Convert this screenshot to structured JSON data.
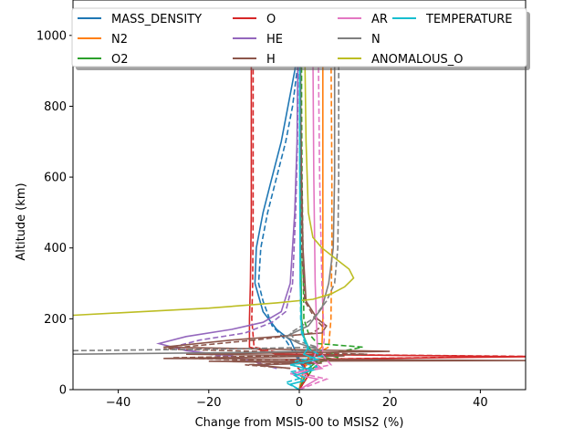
{
  "chart_data": {
    "type": "line",
    "xlabel": "Change from MSIS-00 to MSIS2 (%)",
    "ylabel": "Altitude (km)",
    "xlim": [
      -50,
      50
    ],
    "ylim": [
      0,
      1100
    ],
    "xticks": [
      -40,
      -20,
      0,
      20,
      40
    ],
    "yticks": [
      0,
      200,
      400,
      600,
      800,
      1000
    ],
    "grid": false,
    "legend_position": "top, 4 columns",
    "series": [
      {
        "name": "MASS_DENSITY",
        "color": "#1f77b4",
        "solid": [
          [
            0,
            0
          ],
          [
            1,
            60
          ],
          [
            -0.5,
            100
          ],
          [
            -2,
            140
          ],
          [
            -5,
            170
          ],
          [
            -8,
            220
          ],
          [
            -9.8,
            300
          ],
          [
            -9.5,
            400
          ],
          [
            -8,
            500
          ],
          [
            -6,
            600
          ],
          [
            -4,
            700
          ],
          [
            -2.5,
            800
          ],
          [
            -1,
            900
          ],
          [
            -0.3,
            960
          ]
        ],
        "dashed": [
          [
            0,
            0
          ],
          [
            1,
            60
          ],
          [
            -1,
            100
          ],
          [
            -3,
            140
          ],
          [
            -6,
            180
          ],
          [
            -8,
            250
          ],
          [
            -9,
            300
          ],
          [
            -8.5,
            400
          ],
          [
            -7,
            500
          ],
          [
            -5,
            600
          ],
          [
            -3,
            700
          ],
          [
            -1.5,
            800
          ],
          [
            -0.5,
            900
          ],
          [
            0,
            960
          ]
        ]
      },
      {
        "name": "N2",
        "color": "#ff7f0e",
        "solid": [
          [
            0,
            0
          ],
          [
            1,
            60
          ],
          [
            2,
            90
          ],
          [
            4,
            110
          ],
          [
            5,
            120
          ],
          [
            5.2,
            200
          ],
          [
            5.2,
            400
          ],
          [
            5.2,
            600
          ],
          [
            5.2,
            800
          ],
          [
            5.2,
            960
          ]
        ],
        "dashed": [
          [
            0,
            0
          ],
          [
            1,
            60
          ],
          [
            3,
            90
          ],
          [
            5,
            110
          ],
          [
            6.5,
            120
          ],
          [
            7,
            200
          ],
          [
            7.2,
            400
          ],
          [
            7.2,
            600
          ],
          [
            7.1,
            800
          ],
          [
            7,
            960
          ]
        ]
      },
      {
        "name": "O2",
        "color": "#2ca02c",
        "solid": [
          [
            0,
            0
          ],
          [
            2,
            60
          ],
          [
            4,
            80
          ],
          [
            8,
            85
          ],
          [
            4,
            95
          ],
          [
            2,
            120
          ],
          [
            1,
            150
          ],
          [
            0.5,
            200
          ],
          [
            0.3,
            400
          ],
          [
            0.3,
            600
          ],
          [
            0.3,
            800
          ],
          [
            0.3,
            960
          ]
        ],
        "dashed": [
          [
            0,
            0
          ],
          [
            3,
            60
          ],
          [
            5,
            80
          ],
          [
            10,
            85
          ],
          [
            6,
            100
          ],
          [
            14,
            120
          ],
          [
            4,
            130
          ],
          [
            2,
            160
          ],
          [
            1,
            200
          ],
          [
            0.8,
            400
          ],
          [
            0.6,
            600
          ],
          [
            0.5,
            800
          ],
          [
            0.5,
            960
          ]
        ]
      },
      {
        "name": "O",
        "color": "#d62728",
        "solid": [
          [
            0,
            0
          ],
          [
            2,
            40
          ],
          [
            1,
            70
          ],
          [
            -2,
            85
          ],
          [
            50,
            93
          ],
          [
            -5,
            100
          ],
          [
            -11,
            120
          ],
          [
            -11,
            200
          ],
          [
            -10.8,
            300
          ],
          [
            -10.6,
            500
          ],
          [
            -10.6,
            700
          ],
          [
            -10.6,
            960
          ]
        ],
        "dashed": [
          [
            0,
            0
          ],
          [
            2,
            40
          ],
          [
            -3,
            85
          ],
          [
            50,
            94
          ],
          [
            -3,
            100
          ],
          [
            -10,
            120
          ],
          [
            -10.5,
            200
          ],
          [
            -10.3,
            300
          ],
          [
            -10.2,
            500
          ],
          [
            -10.2,
            700
          ],
          [
            -10.2,
            960
          ]
        ]
      },
      {
        "name": "HE",
        "color": "#9467bd",
        "solid": [
          [
            -5,
            60
          ],
          [
            -8,
            70
          ],
          [
            -10,
            80
          ],
          [
            -15,
            95
          ],
          [
            -25,
            110
          ],
          [
            -31,
            130
          ],
          [
            -25,
            150
          ],
          [
            -15,
            170
          ],
          [
            -8,
            190
          ],
          [
            -4,
            220
          ],
          [
            -2,
            300
          ],
          [
            -1,
            500
          ],
          [
            -0.5,
            700
          ],
          [
            -0.3,
            960
          ]
        ],
        "dashed": [
          [
            -5,
            60
          ],
          [
            -10,
            80
          ],
          [
            -20,
            100
          ],
          [
            -28,
            120
          ],
          [
            -22,
            140
          ],
          [
            -12,
            160
          ],
          [
            -6,
            190
          ],
          [
            -3,
            220
          ],
          [
            -1.5,
            300
          ],
          [
            -0.8,
            500
          ],
          [
            -0.4,
            700
          ],
          [
            -0.2,
            960
          ]
        ]
      },
      {
        "name": "H",
        "color": "#8c564b",
        "solid": [
          [
            -2,
            60
          ],
          [
            -10,
            70
          ],
          [
            5,
            75
          ],
          [
            -20,
            80
          ],
          [
            50,
            82
          ],
          [
            -30,
            88
          ],
          [
            10,
            95
          ],
          [
            -25,
            100
          ],
          [
            20,
            108
          ],
          [
            -30,
            120
          ],
          [
            -15,
            140
          ],
          [
            5,
            160
          ],
          [
            6,
            180
          ],
          [
            4,
            200
          ],
          [
            1.5,
            250
          ],
          [
            0.8,
            400
          ],
          [
            0.5,
            600
          ],
          [
            0.3,
            800
          ],
          [
            0.2,
            960
          ]
        ],
        "dashed": [
          [
            -2,
            60
          ],
          [
            -12,
            70
          ],
          [
            3,
            78
          ],
          [
            -28,
            90
          ],
          [
            15,
            100
          ],
          [
            -30,
            115
          ],
          [
            -10,
            140
          ],
          [
            3,
            160
          ],
          [
            5,
            180
          ],
          [
            3.5,
            200
          ],
          [
            1.2,
            250
          ],
          [
            0.5,
            400
          ],
          [
            0.3,
            600
          ],
          [
            0.2,
            800
          ],
          [
            0.1,
            960
          ]
        ]
      },
      {
        "name": "AR",
        "color": "#e377c2",
        "solid": [
          [
            0,
            0
          ],
          [
            4,
            30
          ],
          [
            -2,
            45
          ],
          [
            5,
            60
          ],
          [
            3,
            80
          ],
          [
            4,
            120
          ],
          [
            3.5,
            300
          ],
          [
            3.2,
            600
          ],
          [
            3,
            960
          ]
        ],
        "dashed": [
          [
            0,
            0
          ],
          [
            6,
            30
          ],
          [
            -1,
            50
          ],
          [
            7,
            70
          ],
          [
            5,
            100
          ],
          [
            5.5,
            140
          ],
          [
            5,
            300
          ],
          [
            4.5,
            600
          ],
          [
            4.2,
            960
          ]
        ]
      },
      {
        "name": "N",
        "color": "#7f7f7f",
        "solid": [
          [
            -50,
            100
          ],
          [
            -10,
            105
          ],
          [
            5,
            110
          ],
          [
            0,
            130
          ],
          [
            -3,
            150
          ],
          [
            2,
            180
          ],
          [
            5,
            230
          ],
          [
            6.5,
            300
          ],
          [
            7.5,
            400
          ],
          [
            7.8,
            600
          ],
          [
            7.8,
            800
          ],
          [
            7.8,
            960
          ]
        ],
        "dashed": [
          [
            -50,
            110
          ],
          [
            -15,
            115
          ],
          [
            4,
            120
          ],
          [
            -1,
            140
          ],
          [
            -2,
            160
          ],
          [
            3,
            200
          ],
          [
            6,
            250
          ],
          [
            7.8,
            300
          ],
          [
            8.5,
            400
          ],
          [
            8.7,
            600
          ],
          [
            8.7,
            800
          ],
          [
            8.7,
            960
          ]
        ]
      },
      {
        "name": "ANOMALOUS_O",
        "color": "#bcbd22",
        "solid": [
          [
            -50,
            210
          ],
          [
            -20,
            230
          ],
          [
            -5,
            245
          ],
          [
            3,
            255
          ],
          [
            7,
            270
          ],
          [
            10,
            290
          ],
          [
            12,
            315
          ],
          [
            11,
            340
          ],
          [
            8,
            370
          ],
          [
            5,
            400
          ],
          [
            3,
            430
          ],
          [
            2,
            500
          ],
          [
            1.5,
            700
          ],
          [
            1.2,
            960
          ]
        ],
        "dashed": []
      },
      {
        "name": "TEMPERATURE",
        "color": "#17becf",
        "solid": [
          [
            0,
            0
          ],
          [
            -2,
            15
          ],
          [
            1,
            25
          ],
          [
            -1,
            40
          ],
          [
            3,
            55
          ],
          [
            -2,
            70
          ],
          [
            4,
            85
          ],
          [
            1,
            100
          ],
          [
            2,
            120
          ],
          [
            0.5,
            160
          ],
          [
            0.2,
            300
          ],
          [
            0.1,
            600
          ],
          [
            0.1,
            960
          ]
        ],
        "dashed": [
          [
            0,
            0
          ],
          [
            -3,
            20
          ],
          [
            1,
            35
          ],
          [
            -2,
            50
          ],
          [
            4,
            65
          ],
          [
            -1,
            80
          ],
          [
            5,
            95
          ],
          [
            2,
            115
          ],
          [
            1,
            140
          ],
          [
            0.3,
            200
          ],
          [
            0.2,
            400
          ],
          [
            0.1,
            700
          ],
          [
            0.1,
            960
          ]
        ]
      }
    ]
  }
}
